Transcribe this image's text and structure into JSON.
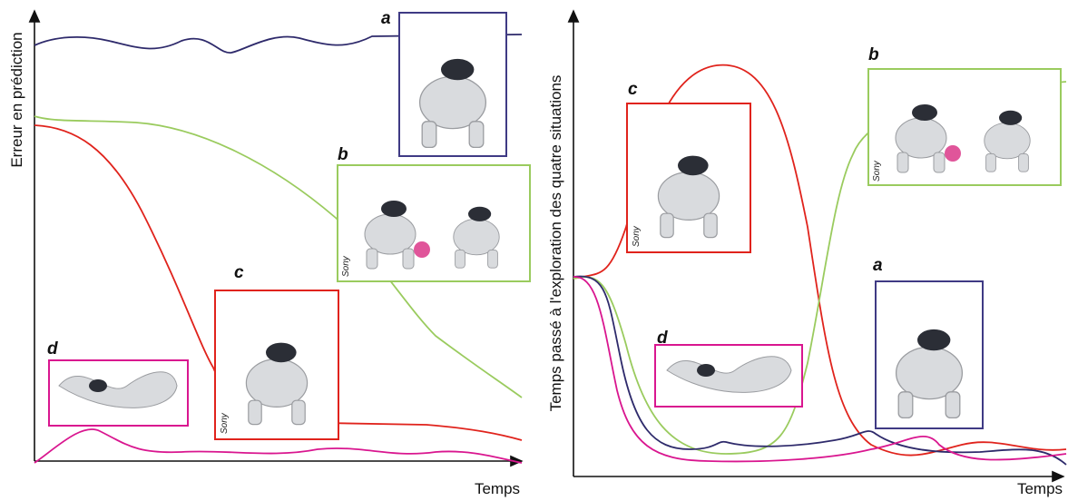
{
  "left_panel": {
    "y_axis_label": "Erreur en prédiction",
    "x_axis_label": "Temps",
    "insets": [
      {
        "label": "a"
      },
      {
        "label": "b",
        "credit": "Sony"
      },
      {
        "label": "c",
        "credit": "Sony"
      },
      {
        "label": "d"
      }
    ]
  },
  "right_panel": {
    "y_axis_label": "Temps passé à l'exploration des quatre situations",
    "x_axis_label": "Temps",
    "insets": [
      {
        "label": "a"
      },
      {
        "label": "b",
        "credit": "Sony"
      },
      {
        "label": "c",
        "credit": "Sony"
      },
      {
        "label": "d"
      }
    ]
  }
}
